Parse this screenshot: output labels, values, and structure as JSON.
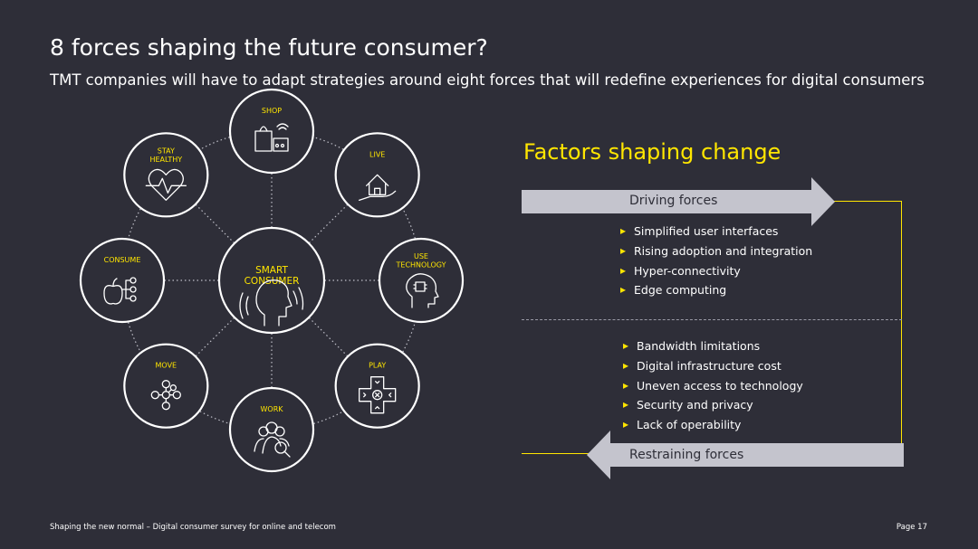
{
  "header": {
    "title": "8 forces shaping the future consumer?",
    "subtitle": "TMT companies will have to adapt strategies around eight forces that will redefine experiences for digital consumers"
  },
  "diagram": {
    "center": {
      "lines": [
        "SMART",
        "CONSUMER"
      ],
      "icon": "person-listening-icon"
    },
    "nodes": [
      {
        "lines": [
          "SHOP"
        ],
        "icon": "shopping-icon"
      },
      {
        "lines": [
          "LIVE"
        ],
        "icon": "home-hand-icon"
      },
      {
        "lines": [
          "USE",
          "TECHNOLOGY"
        ],
        "icon": "head-chip-icon"
      },
      {
        "lines": [
          "PLAY"
        ],
        "icon": "gamepad-icon"
      },
      {
        "lines": [
          "WORK"
        ],
        "icon": "people-search-icon"
      },
      {
        "lines": [
          "MOVE"
        ],
        "icon": "network-nodes-icon"
      },
      {
        "lines": [
          "CONSUME"
        ],
        "icon": "apple-nodes-icon"
      },
      {
        "lines": [
          "STAY",
          "HEALTHY"
        ],
        "icon": "heart-pulse-icon"
      }
    ]
  },
  "factors": {
    "title": "Factors shaping change",
    "driving": {
      "label": "Driving forces",
      "items": [
        "Simplified user interfaces",
        "Rising adoption and integration",
        "Hyper-connectivity",
        "Edge computing"
      ]
    },
    "restraining": {
      "label": "Restraining forces",
      "items": [
        "Bandwidth limitations",
        "Digital infrastructure cost",
        "Uneven access to technology",
        "Security and privacy",
        "Lack of operability"
      ]
    }
  },
  "footer": {
    "left": "Shaping the new normal – Digital consumer survey for online and telecom",
    "right": "Page 17"
  },
  "colors": {
    "background": "#2e2e38",
    "accent": "#ffe600",
    "arrow": "#c4c4cd"
  }
}
